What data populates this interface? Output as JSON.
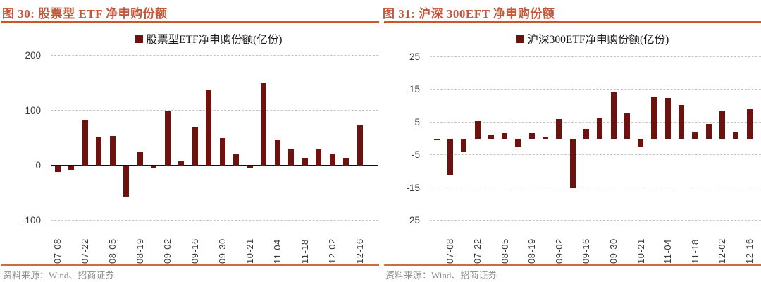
{
  "panels": [
    {
      "title": "图 30: 股票型 ETF 净申购份额",
      "legend_label": "股票型ETF净申购份额(亿份)",
      "source_label": "资料来源：Wind、招商证券"
    },
    {
      "title": "图 31: 沪深 300EFT 净申购份额",
      "legend_label": "沪深300ETF净申购份额(亿份)",
      "source_label": "资料来源：Wind、招商证券"
    }
  ],
  "colors": {
    "bar": "#6e1210",
    "title": "#c2573b",
    "title_rule": "#cc5629",
    "source_rule": "#d06a42",
    "source_text": "#8c8c8c",
    "axis_text": "#3a3a3a",
    "gridline": "#c4c4c4",
    "zero_line": "#111111"
  },
  "chart_data": [
    {
      "type": "bar",
      "title": "图 30: 股票型 ETF 净申购份额",
      "legend": [
        "股票型ETF净申购份额(亿份)"
      ],
      "unit": "亿份",
      "categories": [
        "07-08",
        "07-15",
        "07-22",
        "07-29",
        "08-05",
        "08-12",
        "08-19",
        "08-26",
        "09-02",
        "09-09",
        "09-16",
        "09-23",
        "09-30",
        "10-14",
        "10-21",
        "10-28",
        "11-04",
        "11-11",
        "11-18",
        "11-25",
        "12-02",
        "12-09",
        "12-16"
      ],
      "values": [
        -11,
        -8,
        83,
        53,
        54,
        -57,
        26,
        -5,
        100,
        8,
        70,
        137,
        50,
        21,
        -5,
        150,
        48,
        31,
        14,
        29,
        21,
        14,
        73
      ],
      "ylim": [
        -100,
        200
      ],
      "yticks": [
        200,
        100,
        0,
        -100
      ],
      "x_labeled_indices": [
        0,
        2,
        4,
        6,
        8,
        10,
        12,
        14,
        16,
        18,
        20,
        22
      ],
      "x_tick_labels": [
        "07-08",
        "07-22",
        "08-05",
        "08-19",
        "09-02",
        "09-16",
        "09-30",
        "10-21",
        "11-04",
        "11-18",
        "12-02",
        "12-16"
      ],
      "grid": "horizontal-dashed",
      "legend_position": "top-center"
    },
    {
      "type": "bar",
      "title": "图 31: 沪深 300EFT 净申购份额",
      "legend": [
        "沪深300ETF净申购份额(亿份)"
      ],
      "unit": "亿份",
      "categories": [
        "07-01",
        "07-08",
        "07-15",
        "07-22",
        "07-29",
        "08-05",
        "08-12",
        "08-19",
        "08-26",
        "09-02",
        "09-09",
        "09-16",
        "09-23",
        "09-30",
        "10-14",
        "10-21",
        "10-28",
        "11-04",
        "11-11",
        "11-18",
        "11-25",
        "12-02",
        "12-09",
        "12-16"
      ],
      "values": [
        -0.5,
        -11,
        -4,
        5.5,
        1.3,
        2.0,
        -2.5,
        1.7,
        0.5,
        6.0,
        -15,
        3.0,
        6.3,
        14.2,
        7.9,
        -2.3,
        12.9,
        12.5,
        10.3,
        2.2,
        4.6,
        8.4,
        2.2,
        9.0
      ],
      "ylim": [
        -25,
        25
      ],
      "yticks": [
        25,
        15,
        5,
        -5,
        -15,
        -25
      ],
      "x_labeled_indices": [
        1,
        3,
        5,
        7,
        9,
        11,
        13,
        15,
        17,
        19,
        21,
        23
      ],
      "x_tick_labels": [
        "07-08",
        "07-22",
        "08-05",
        "08-19",
        "09-02",
        "09-16",
        "09-30",
        "10-21",
        "11-04",
        "11-18",
        "12-02",
        "12-16"
      ],
      "grid": "horizontal-dashed",
      "legend_position": "top-center"
    }
  ]
}
